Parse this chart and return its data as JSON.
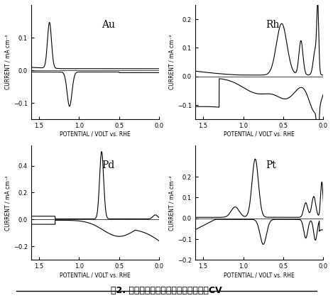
{
  "title": "図2. 種々の金属電極の硫酸中におけるCV",
  "subplots": [
    {
      "label": "Au",
      "ylim": [
        -0.15,
        0.2
      ],
      "yticks": [
        -0.1,
        0,
        0.1
      ],
      "xlim": [
        1.6,
        0
      ],
      "xticks": [
        1.5,
        1.0,
        0.5,
        0
      ]
    },
    {
      "label": "Rh",
      "ylim": [
        -0.15,
        0.25
      ],
      "yticks": [
        -0.1,
        0,
        0.1,
        0.2
      ],
      "xlim": [
        1.6,
        0
      ],
      "xticks": [
        1.5,
        1.0,
        0.5,
        0
      ]
    },
    {
      "label": "Pd",
      "ylim": [
        -0.3,
        0.55
      ],
      "yticks": [
        -0.2,
        0,
        0.2,
        0.4
      ],
      "xlim": [
        1.6,
        0
      ],
      "xticks": [
        1.5,
        1.0,
        0.5,
        0
      ]
    },
    {
      "label": "Pt",
      "ylim": [
        -0.2,
        0.35
      ],
      "yticks": [
        -0.2,
        -0.1,
        0,
        0.1,
        0.2
      ],
      "xlim": [
        1.6,
        0
      ],
      "xticks": [
        1.5,
        1.0,
        0.5,
        0
      ]
    }
  ],
  "xlabel": "POTENTIAL / VOLT vs. RHE",
  "ylabel": "CURRENT / mA cm⁻²",
  "background": "#ffffff",
  "line_color": "#000000"
}
